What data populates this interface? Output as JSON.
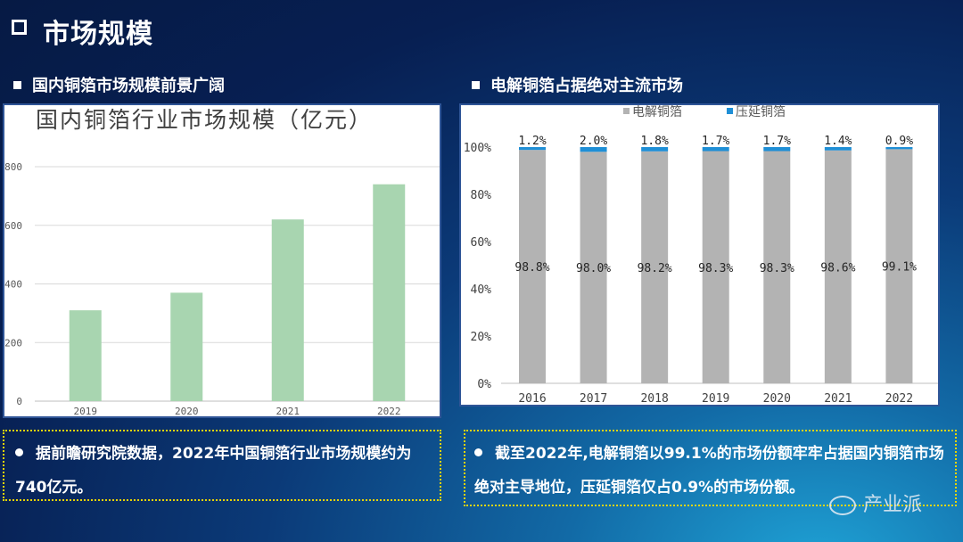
{
  "page": {
    "title": "市场规模"
  },
  "left": {
    "section_title": "国内铜箔市场规模前景广阔",
    "note": "据前瞻研究院数据，2022年中国铜箔行业市场规模约为740亿元。"
  },
  "right": {
    "section_title": "电解铜箔占据绝对主流市场",
    "note": "截至2022年,电解铜箔以99.1%的市场份额牢牢占据国内铜箔市场绝对主导地位，压延铜箔仅占0.9%的市场份额。"
  },
  "watermark": "产业派",
  "chart_data": [
    {
      "type": "bar",
      "title": "国内铜箔行业市场规模（亿元）",
      "categories": [
        "2019",
        "2020",
        "2021",
        "2022"
      ],
      "values": [
        310,
        370,
        620,
        740
      ],
      "ylim": [
        0,
        800
      ],
      "yticks": [
        "0",
        "200",
        "400",
        "600",
        "800"
      ],
      "grid": true,
      "colors": {
        "bar": "#a8d5b0"
      }
    },
    {
      "type": "bar",
      "stacked": true,
      "categories": [
        "2016",
        "2017",
        "2018",
        "2019",
        "2020",
        "2021",
        "2022"
      ],
      "series": [
        {
          "name": "电解铜箔",
          "values": [
            98.8,
            98.0,
            98.2,
            98.3,
            98.3,
            98.6,
            99.1
          ],
          "labels": [
            "98.8%",
            "98.0%",
            "98.2%",
            "98.3%",
            "98.3%",
            "98.6%",
            "99.1%"
          ]
        },
        {
          "name": "压延铜箔",
          "values": [
            1.2,
            2.0,
            1.8,
            1.7,
            1.7,
            1.4,
            0.9
          ],
          "labels": [
            "1.2%",
            "2.0%",
            "1.8%",
            "1.7%",
            "1.7%",
            "1.4%",
            "0.9%"
          ]
        }
      ],
      "ylim": [
        0,
        100
      ],
      "yticks": [
        "0%",
        "20%",
        "40%",
        "60%",
        "80%",
        "100%"
      ],
      "legend": "top",
      "colors": {
        "电解铜箔": "#b3b3b3",
        "压延铜箔": "#1f8fd6"
      }
    }
  ]
}
